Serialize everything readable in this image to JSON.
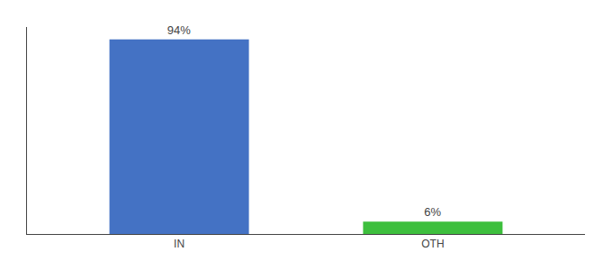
{
  "chart_data": {
    "type": "bar",
    "categories": [
      "IN",
      "OTH"
    ],
    "values": [
      94,
      6
    ],
    "value_labels": [
      "94%",
      "6%"
    ],
    "colors": [
      "#4472C4",
      "#3DBF3D"
    ],
    "ylim": [
      0,
      100
    ],
    "data_labels": true,
    "tick_labels": "x",
    "grid": false
  }
}
